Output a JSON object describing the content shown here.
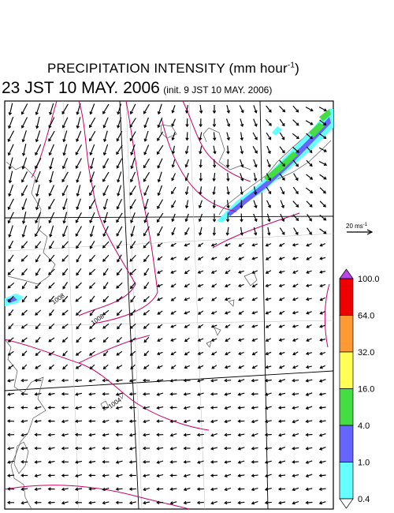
{
  "title": {
    "main": "PRECIPITATION INTENSITY (mm hour",
    "exponent": "-1",
    "close": ")"
  },
  "valid_time": "23 JST 10 MAY. 2006",
  "init_time": "(init. 9 JST 10 MAY. 2006)",
  "wind_reference": {
    "label": "20 ms",
    "exponent": "-1"
  },
  "colorbar": {
    "levels": [
      "0.4",
      "1.0",
      "4.0",
      "16.0",
      "32.0",
      "64.0",
      "100.0"
    ],
    "colors": [
      "#66ffff",
      "#6666ff",
      "#44dd44",
      "#ffff55",
      "#ff9933",
      "#ee0000"
    ],
    "under_color": "#ffffff",
    "over_color": "#bb44ee"
  },
  "isobars": {
    "color": "#cc0066",
    "labels": [
      "1008",
      "1008",
      "1004"
    ]
  }
}
